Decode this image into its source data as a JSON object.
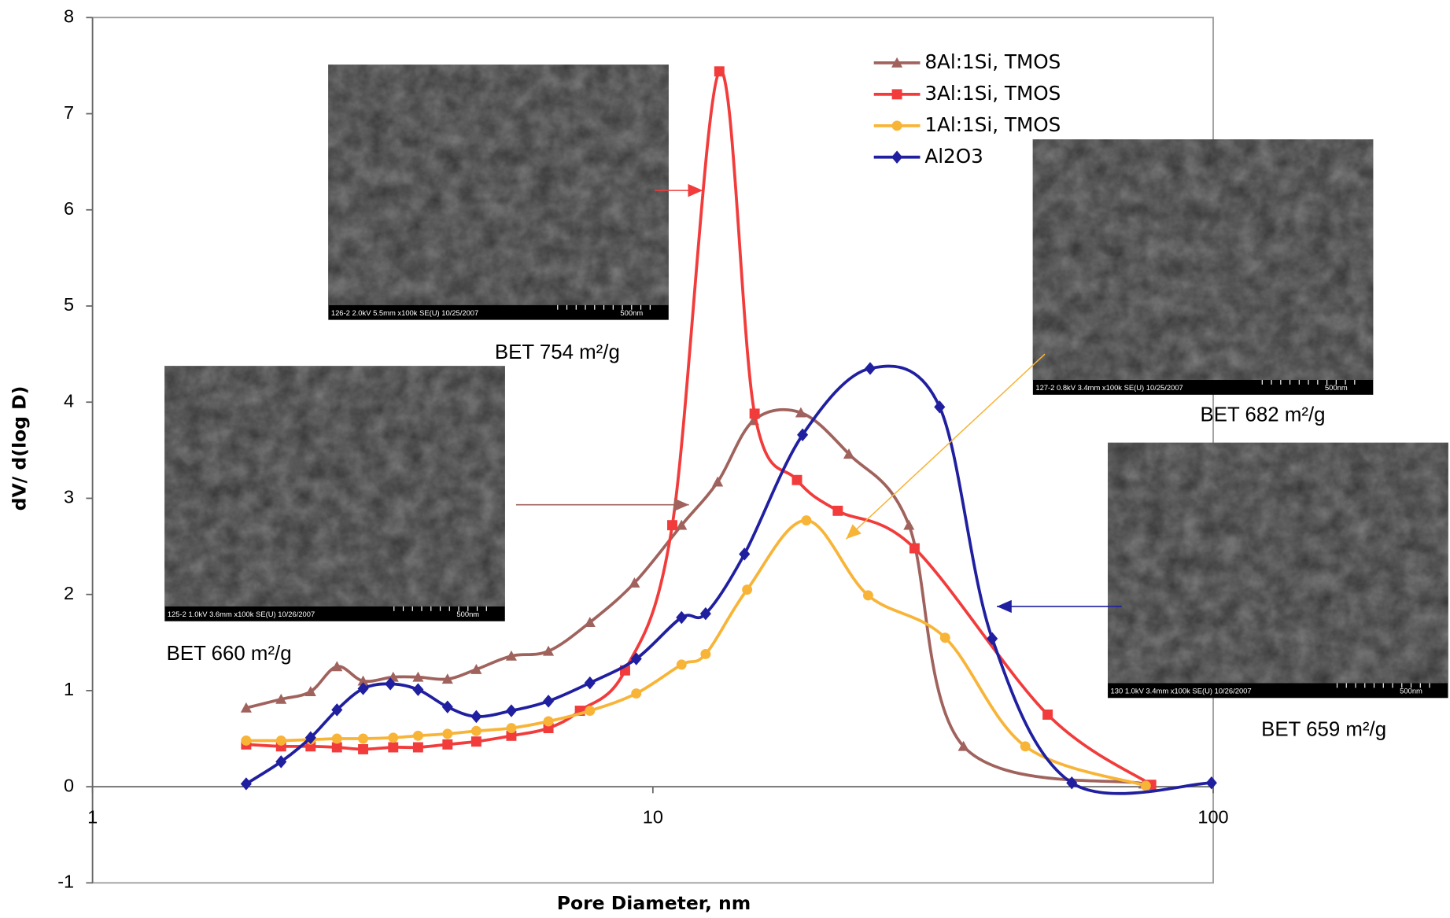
{
  "chart_data": {
    "type": "line",
    "xlabel": "Pore Diameter, nm",
    "ylabel": "dV/ d(log D)",
    "xscale": "log",
    "xlim": [
      1,
      100
    ],
    "xticks": [
      1,
      10,
      100
    ],
    "ylim": [
      -1,
      8
    ],
    "yticks": [
      -1,
      0,
      1,
      2,
      3,
      4,
      5,
      6,
      7,
      8
    ],
    "series": [
      {
        "name": "8Al:1Si, TMOS",
        "color": "#a0625c",
        "marker": "triangle",
        "x": [
          1.88,
          2.17,
          2.45,
          2.73,
          3.04,
          3.44,
          3.81,
          4.3,
          4.84,
          5.59,
          6.51,
          7.72,
          9.27,
          11.25,
          13.05,
          15.13,
          18.37,
          22.38,
          28.64,
          35.84,
          75.2
        ],
        "values": [
          0.82,
          0.91,
          0.99,
          1.25,
          1.1,
          1.14,
          1.14,
          1.12,
          1.22,
          1.36,
          1.41,
          1.71,
          2.12,
          2.72,
          3.17,
          3.81,
          3.89,
          3.46,
          2.72,
          0.42,
          0.03
        ]
      },
      {
        "name": "3Al:1Si, TMOS",
        "color": "#f23b3b",
        "marker": "square",
        "x": [
          1.88,
          2.17,
          2.45,
          2.73,
          3.04,
          3.44,
          3.81,
          4.3,
          4.84,
          5.59,
          6.51,
          7.41,
          8.92,
          10.83,
          13.14,
          15.19,
          18.08,
          21.38,
          29.31,
          50.65,
          77.5
        ],
        "values": [
          0.44,
          0.42,
          0.42,
          0.41,
          0.39,
          0.41,
          0.41,
          0.44,
          0.47,
          0.53,
          0.61,
          0.79,
          1.21,
          2.72,
          7.44,
          3.88,
          3.19,
          2.87,
          2.48,
          0.75,
          0.02
        ]
      },
      {
        "name": "1Al:1Si, TMOS",
        "color": "#f8b437",
        "marker": "circle",
        "x": [
          1.88,
          2.17,
          2.45,
          2.73,
          3.04,
          3.44,
          3.81,
          4.3,
          4.84,
          5.59,
          6.51,
          7.72,
          9.34,
          11.25,
          12.42,
          14.73,
          18.79,
          24.22,
          33.23,
          46.2,
          75.8
        ],
        "values": [
          0.48,
          0.48,
          0.49,
          0.5,
          0.5,
          0.51,
          0.53,
          0.55,
          0.58,
          0.61,
          0.68,
          0.79,
          0.97,
          1.27,
          1.38,
          2.05,
          2.77,
          1.99,
          1.55,
          0.42,
          0.01
        ]
      },
      {
        "name": "Al2O3",
        "color": "#1f1fa0",
        "marker": "diamond",
        "x": [
          1.88,
          2.17,
          2.45,
          2.73,
          3.04,
          3.4,
          3.81,
          4.3,
          4.84,
          5.59,
          6.51,
          7.72,
          9.34,
          11.25,
          12.42,
          14.57,
          18.5,
          24.42,
          32.49,
          40.33,
          55.93,
          99.3
        ],
        "values": [
          0.03,
          0.26,
          0.51,
          0.8,
          1.02,
          1.07,
          1.01,
          0.83,
          0.73,
          0.79,
          0.89,
          1.08,
          1.33,
          1.76,
          1.8,
          2.42,
          3.66,
          4.35,
          3.95,
          1.54,
          0.04,
          0.04
        ]
      }
    ],
    "micrographs": [
      {
        "caption": "126-2 2.0kV 5.5mm x100k SE(U) 10/25/2007",
        "scale_bar": "500nm",
        "bet_label": "BET 754 m²/g"
      },
      {
        "caption": "125-2 1.0kV 3.6mm x100k SE(U) 10/26/2007",
        "scale_bar": "500nm",
        "bet_label": "BET 660 m²/g"
      },
      {
        "caption": "127-2 0.8kV 3.4mm x100k SE(U) 10/25/2007",
        "scale_bar": "500nm",
        "bet_label": "BET 682 m²/g"
      },
      {
        "caption": "130 1.0kV 3.4mm x100k SE(U) 10/26/2007",
        "scale_bar": "500nm",
        "bet_label": "BET 659 m²/g"
      }
    ]
  }
}
